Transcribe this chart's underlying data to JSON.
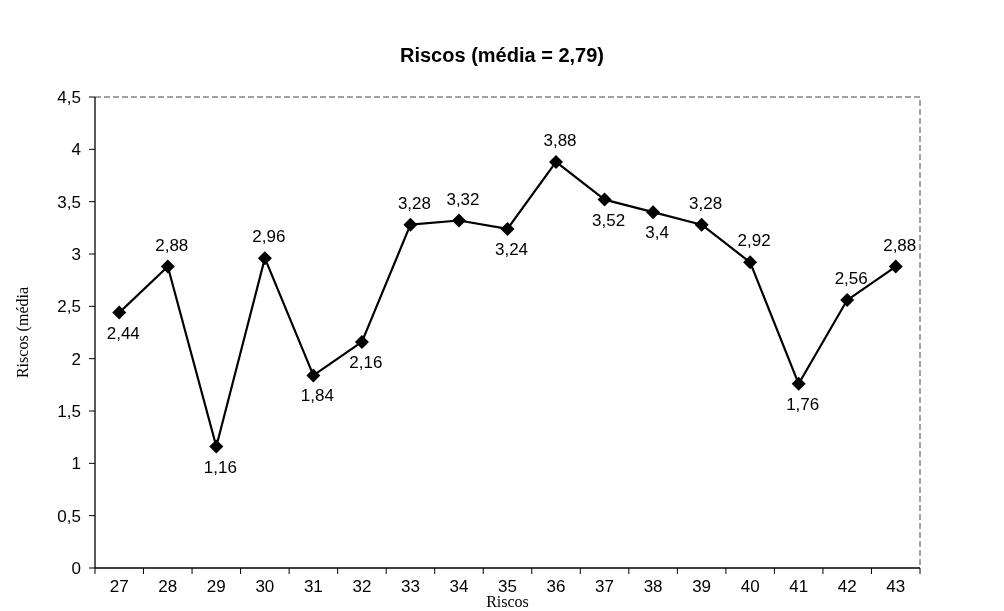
{
  "chart_data": {
    "type": "line",
    "title": "Riscos (média = 2,79)",
    "xlabel": "Riscos",
    "ylabel": "Riscos (média",
    "categories": [
      "27",
      "28",
      "29",
      "30",
      "31",
      "32",
      "33",
      "34",
      "35",
      "36",
      "37",
      "38",
      "39",
      "40",
      "41",
      "42",
      "43"
    ],
    "series": [
      {
        "color": "#000000",
        "values": [
          2.44,
          2.88,
          1.16,
          2.96,
          1.84,
          2.16,
          3.28,
          3.32,
          3.24,
          3.88,
          3.52,
          3.4,
          3.28,
          2.92,
          1.76,
          2.56,
          2.88
        ],
        "value_labels": [
          "2,44",
          "2,88",
          "1,16",
          "2,96",
          "1,84",
          "2,16",
          "3,28",
          "3,32",
          "3,24",
          "3,88",
          "3,52",
          "3,4",
          "3,28",
          "2,92",
          "1,76",
          "2,56",
          "2,88"
        ]
      }
    ],
    "ylim": [
      0,
      4.5
    ],
    "yticks": [
      0,
      {
        "value": 0.5,
        "label": "0,5"
      },
      1,
      {
        "value": 1.5,
        "label": "1,5"
      },
      2,
      {
        "value": 2.5,
        "label": "2,5"
      },
      3,
      {
        "value": 3.5,
        "label": "3,5"
      },
      4,
      {
        "value": 4.5,
        "label": "4,5"
      }
    ],
    "marker": "diamond",
    "line_style": "solid"
  }
}
